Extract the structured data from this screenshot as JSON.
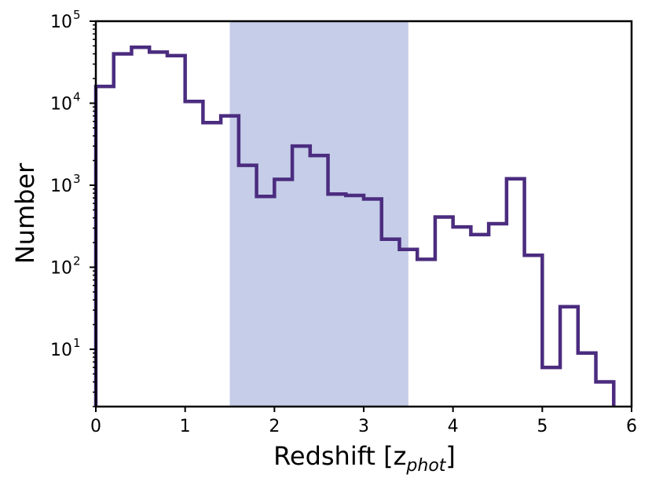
{
  "chart_data": {
    "type": "histogram",
    "title": "",
    "xlabel": "Redshift [z",
    "xlabel_subscript": "phot",
    "xlabel_suffix": "]",
    "ylabel": "Number",
    "xlim": [
      0,
      6
    ],
    "ylim": [
      2,
      100000
    ],
    "yscale": "log",
    "grid": false,
    "legend": "none",
    "x_ticks": [
      "0",
      "1",
      "2",
      "3",
      "4",
      "5",
      "6"
    ],
    "y_ticks": [
      {
        "base": "10",
        "exp": "1"
      },
      {
        "base": "10",
        "exp": "2"
      },
      {
        "base": "10",
        "exp": "3"
      },
      {
        "base": "10",
        "exp": "4"
      },
      {
        "base": "10",
        "exp": "5"
      }
    ],
    "highlight_band": {
      "x_start": 1.5,
      "x_end": 3.5,
      "color": "#c5cde8"
    },
    "series": [
      {
        "color": "#4b2c7f",
        "bin_edges": [
          0,
          0.2,
          0.4,
          0.6,
          0.8,
          1.0,
          1.2,
          1.4,
          1.6,
          1.8,
          2.0,
          2.2,
          2.4,
          2.6,
          2.8,
          3.0,
          3.2,
          3.4,
          3.6,
          3.8,
          4.0,
          4.2,
          4.4,
          4.6,
          4.8,
          5.0,
          5.2,
          5.4,
          5.6,
          5.8
        ],
        "counts": [
          16000,
          40000,
          48000,
          42000,
          38000,
          10500,
          5800,
          7000,
          1750,
          730,
          1180,
          3000,
          2300,
          780,
          750,
          680,
          220,
          165,
          125,
          410,
          310,
          250,
          340,
          1200,
          140,
          6,
          33,
          9,
          4
        ]
      }
    ]
  }
}
